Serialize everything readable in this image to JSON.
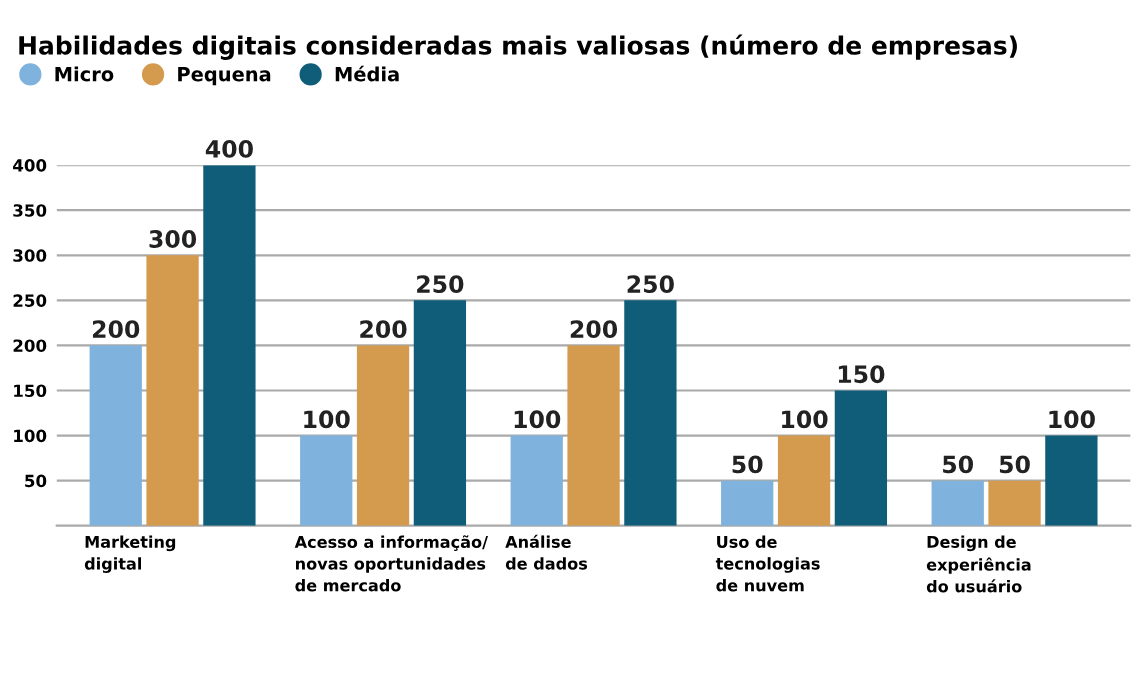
{
  "chart_data": {
    "type": "bar",
    "title": "Habilidades digitais consideradas mais valiosas (número de empresas)",
    "categories": [
      "Marketing\ndigital",
      "Acesso a informação/\nnovas oportunidades\nde mercado",
      "Análise\nde dados",
      "Uso de\ntecnologias\nde nuvem",
      "Design de\nexperiência\ndo usuário"
    ],
    "series": [
      {
        "name": "Micro",
        "color": "#7fb2dc",
        "values": [
          200,
          100,
          100,
          50,
          50
        ]
      },
      {
        "name": "Pequena",
        "color": "#d49a4e",
        "values": [
          300,
          200,
          200,
          100,
          50
        ]
      },
      {
        "name": "Média",
        "color": "#0f5d78",
        "values": [
          400,
          250,
          250,
          150,
          100
        ]
      }
    ],
    "ylim": [
      0,
      400
    ],
    "yticks": [
      50,
      100,
      150,
      200,
      250,
      300,
      350,
      400
    ],
    "grid": "y",
    "legend": "top left",
    "data_labels": true
  }
}
